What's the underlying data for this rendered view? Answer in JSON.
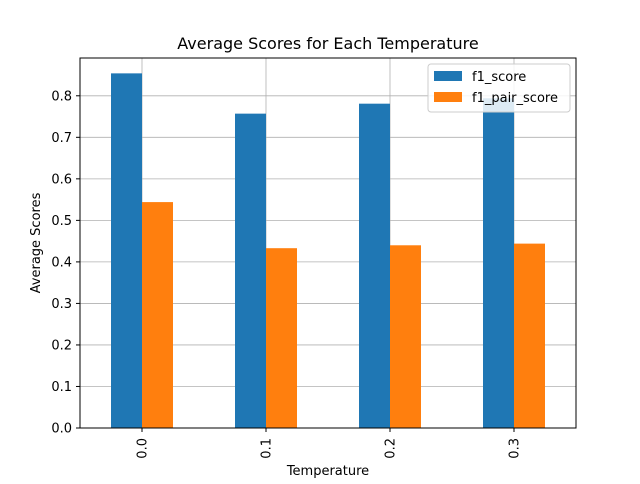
{
  "chart_data": {
    "type": "bar",
    "title": "Average Scores for Each Temperature",
    "xlabel": "Temperature",
    "ylabel": "Average Scores",
    "categories": [
      "0.0",
      "0.1",
      "0.2",
      "0.3"
    ],
    "series": [
      {
        "name": "f1_score",
        "values": [
          0.854,
          0.757,
          0.781,
          0.794
        ],
        "color": "#1f77b4"
      },
      {
        "name": "f1_pair_score",
        "values": [
          0.544,
          0.433,
          0.44,
          0.444
        ],
        "color": "#ff7f0e"
      }
    ],
    "ylim": [
      0,
      0.891
    ],
    "yticks": [
      "0.0",
      "0.1",
      "0.2",
      "0.3",
      "0.4",
      "0.5",
      "0.6",
      "0.7",
      "0.8"
    ],
    "grid": true,
    "legend_position": "top-right"
  }
}
